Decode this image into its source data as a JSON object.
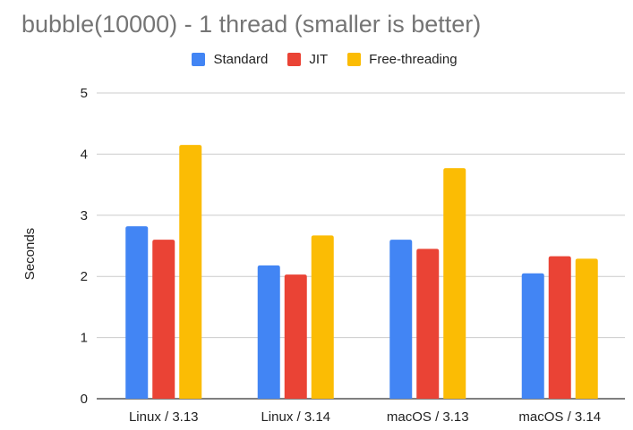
{
  "chart_data": {
    "type": "bar",
    "title": "bubble(10000) - 1 thread (smaller is better)",
    "xlabel": "",
    "ylabel": "Seconds",
    "ylim": [
      0,
      5
    ],
    "yticks": [
      0,
      1,
      2,
      3,
      4,
      5
    ],
    "grid": true,
    "legend_position": "top",
    "categories": [
      "Linux / 3.13",
      "Linux / 3.14",
      "macOS / 3.13",
      "macOS / 3.14"
    ],
    "series": [
      {
        "name": "Standard",
        "color": "#4285f4",
        "values": [
          2.82,
          2.18,
          2.6,
          2.05
        ]
      },
      {
        "name": "JIT",
        "color": "#ea4335",
        "values": [
          2.6,
          2.03,
          2.45,
          2.33
        ]
      },
      {
        "name": "Free-threading",
        "color": "#fbbc04",
        "values": [
          4.15,
          2.67,
          3.77,
          2.29
        ]
      }
    ]
  }
}
